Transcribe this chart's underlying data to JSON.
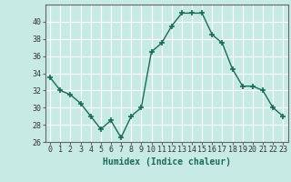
{
  "x": [
    0,
    1,
    2,
    3,
    4,
    5,
    6,
    7,
    8,
    9,
    10,
    11,
    12,
    13,
    14,
    15,
    16,
    17,
    18,
    19,
    20,
    21,
    22,
    23
  ],
  "y": [
    33.5,
    32.0,
    31.5,
    30.5,
    29.0,
    27.5,
    28.5,
    26.5,
    29.0,
    30.0,
    36.5,
    37.5,
    39.5,
    41.0,
    41.0,
    41.0,
    38.5,
    37.5,
    34.5,
    32.5,
    32.5,
    32.0,
    30.0,
    29.0
  ],
  "bg_color": "#c8eae4",
  "line_color": "#1a6b5a",
  "marker_color": "#1a6b5a",
  "grid_color": "#ffffff",
  "xlabel": "Humidex (Indice chaleur)",
  "ylim": [
    26,
    42
  ],
  "xlim": [
    -0.5,
    23.5
  ],
  "yticks": [
    26,
    28,
    30,
    32,
    34,
    36,
    38,
    40
  ],
  "xticks": [
    0,
    1,
    2,
    3,
    4,
    5,
    6,
    7,
    8,
    9,
    10,
    11,
    12,
    13,
    14,
    15,
    16,
    17,
    18,
    19,
    20,
    21,
    22,
    23
  ],
  "tick_fontsize": 6,
  "label_fontsize": 7
}
